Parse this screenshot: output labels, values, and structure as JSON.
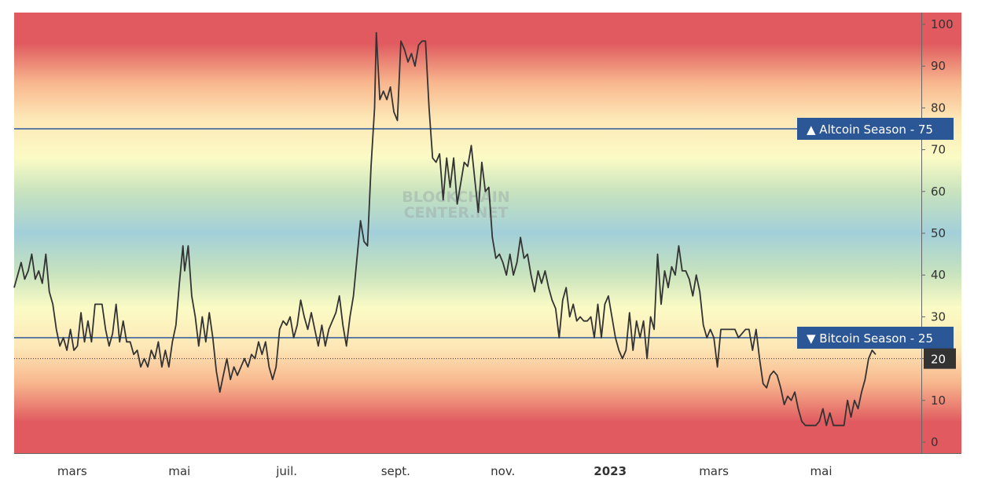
{
  "chart_data": {
    "type": "line",
    "watermark": [
      "BLOCKCHAIN",
      "CENTER.NET"
    ],
    "ylim": [
      0,
      100
    ],
    "y_ticks": [
      0,
      10,
      20,
      30,
      40,
      50,
      60,
      70,
      80,
      90,
      100
    ],
    "x_ticks": [
      {
        "label": "mars",
        "date": "2022-03-01",
        "bold": false
      },
      {
        "label": "mai",
        "date": "2022-05-01",
        "bold": false
      },
      {
        "label": "juil.",
        "date": "2022-07-01",
        "bold": false
      },
      {
        "label": "sept.",
        "date": "2022-09-01",
        "bold": false
      },
      {
        "label": "nov.",
        "date": "2022-11-01",
        "bold": false
      },
      {
        "label": "2023",
        "date": "2023-01-01",
        "bold": true
      },
      {
        "label": "mars",
        "date": "2023-03-01",
        "bold": false
      },
      {
        "label": "mai",
        "date": "2023-05-01",
        "bold": false
      }
    ],
    "xlim": [
      "2022-01-27",
      "2023-06-27"
    ],
    "reference_lines": [
      {
        "label": "Altcoin Season",
        "symbol": "▲",
        "value": 75,
        "color": "#2c5797"
      },
      {
        "label": "Bitcoin Season",
        "symbol": "▼",
        "value": 25,
        "color": "#2c5797"
      }
    ],
    "current_value": 20,
    "series": [
      {
        "color": "#333333",
        "points": [
          [
            "2022-01-27",
            37
          ],
          [
            "2022-01-29",
            40
          ],
          [
            "2022-01-31",
            43
          ],
          [
            "2022-02-02",
            39
          ],
          [
            "2022-02-04",
            41
          ],
          [
            "2022-02-06",
            45
          ],
          [
            "2022-02-08",
            39
          ],
          [
            "2022-02-10",
            41
          ],
          [
            "2022-02-12",
            38
          ],
          [
            "2022-02-14",
            45
          ],
          [
            "2022-02-16",
            36
          ],
          [
            "2022-02-18",
            33
          ],
          [
            "2022-02-20",
            27
          ],
          [
            "2022-02-22",
            23
          ],
          [
            "2022-02-24",
            25
          ],
          [
            "2022-02-26",
            22
          ],
          [
            "2022-02-28",
            27
          ],
          [
            "2022-03-02",
            22
          ],
          [
            "2022-03-04",
            23
          ],
          [
            "2022-03-06",
            31
          ],
          [
            "2022-03-08",
            24
          ],
          [
            "2022-03-10",
            29
          ],
          [
            "2022-03-12",
            24
          ],
          [
            "2022-03-14",
            33
          ],
          [
            "2022-03-16",
            33
          ],
          [
            "2022-03-18",
            33
          ],
          [
            "2022-03-20",
            27
          ],
          [
            "2022-03-22",
            23
          ],
          [
            "2022-03-24",
            26
          ],
          [
            "2022-03-26",
            33
          ],
          [
            "2022-03-28",
            24
          ],
          [
            "2022-03-30",
            29
          ],
          [
            "2022-04-01",
            24
          ],
          [
            "2022-04-03",
            24
          ],
          [
            "2022-04-05",
            21
          ],
          [
            "2022-04-07",
            22
          ],
          [
            "2022-04-09",
            18
          ],
          [
            "2022-04-11",
            20
          ],
          [
            "2022-04-13",
            18
          ],
          [
            "2022-04-15",
            22
          ],
          [
            "2022-04-17",
            20
          ],
          [
            "2022-04-19",
            24
          ],
          [
            "2022-04-21",
            18
          ],
          [
            "2022-04-23",
            22
          ],
          [
            "2022-04-25",
            18
          ],
          [
            "2022-04-27",
            24
          ],
          [
            "2022-04-29",
            28
          ],
          [
            "2022-05-01",
            38
          ],
          [
            "2022-05-03",
            47
          ],
          [
            "2022-05-04",
            41
          ],
          [
            "2022-05-06",
            47
          ],
          [
            "2022-05-08",
            35
          ],
          [
            "2022-05-10",
            30
          ],
          [
            "2022-05-12",
            23
          ],
          [
            "2022-05-14",
            30
          ],
          [
            "2022-05-16",
            24
          ],
          [
            "2022-05-18",
            31
          ],
          [
            "2022-05-20",
            25
          ],
          [
            "2022-05-22",
            17
          ],
          [
            "2022-05-24",
            12
          ],
          [
            "2022-05-26",
            16
          ],
          [
            "2022-05-28",
            20
          ],
          [
            "2022-05-30",
            15
          ],
          [
            "2022-06-01",
            18
          ],
          [
            "2022-06-03",
            16
          ],
          [
            "2022-06-05",
            18
          ],
          [
            "2022-06-07",
            20
          ],
          [
            "2022-06-09",
            18
          ],
          [
            "2022-06-11",
            21
          ],
          [
            "2022-06-13",
            20
          ],
          [
            "2022-06-15",
            24
          ],
          [
            "2022-06-17",
            21
          ],
          [
            "2022-06-19",
            24
          ],
          [
            "2022-06-21",
            18
          ],
          [
            "2022-06-23",
            15
          ],
          [
            "2022-06-25",
            18
          ],
          [
            "2022-06-27",
            27
          ],
          [
            "2022-06-29",
            29
          ],
          [
            "2022-07-01",
            28
          ],
          [
            "2022-07-03",
            30
          ],
          [
            "2022-07-05",
            25
          ],
          [
            "2022-07-07",
            28
          ],
          [
            "2022-07-09",
            34
          ],
          [
            "2022-07-11",
            30
          ],
          [
            "2022-07-13",
            27
          ],
          [
            "2022-07-15",
            31
          ],
          [
            "2022-07-17",
            27
          ],
          [
            "2022-07-19",
            23
          ],
          [
            "2022-07-21",
            28
          ],
          [
            "2022-07-23",
            23
          ],
          [
            "2022-07-25",
            27
          ],
          [
            "2022-07-27",
            29
          ],
          [
            "2022-07-29",
            31
          ],
          [
            "2022-07-31",
            35
          ],
          [
            "2022-08-02",
            28
          ],
          [
            "2022-08-04",
            23
          ],
          [
            "2022-08-06",
            30
          ],
          [
            "2022-08-08",
            35
          ],
          [
            "2022-08-10",
            44
          ],
          [
            "2022-08-12",
            53
          ],
          [
            "2022-08-14",
            48
          ],
          [
            "2022-08-16",
            47
          ],
          [
            "2022-08-18",
            66
          ],
          [
            "2022-08-20",
            80
          ],
          [
            "2022-08-21",
            98
          ],
          [
            "2022-08-23",
            82
          ],
          [
            "2022-08-25",
            84
          ],
          [
            "2022-08-27",
            82
          ],
          [
            "2022-08-29",
            85
          ],
          [
            "2022-08-31",
            79
          ],
          [
            "2022-09-02",
            77
          ],
          [
            "2022-09-04",
            96
          ],
          [
            "2022-09-06",
            94
          ],
          [
            "2022-09-08",
            91
          ],
          [
            "2022-09-10",
            93
          ],
          [
            "2022-09-12",
            90
          ],
          [
            "2022-09-14",
            95
          ],
          [
            "2022-09-16",
            96
          ],
          [
            "2022-09-18",
            96
          ],
          [
            "2022-09-20",
            80
          ],
          [
            "2022-09-22",
            68
          ],
          [
            "2022-09-24",
            67
          ],
          [
            "2022-09-26",
            69
          ],
          [
            "2022-09-28",
            58
          ],
          [
            "2022-09-30",
            68
          ],
          [
            "2022-10-02",
            61
          ],
          [
            "2022-10-04",
            68
          ],
          [
            "2022-10-06",
            57
          ],
          [
            "2022-10-08",
            62
          ],
          [
            "2022-10-10",
            67
          ],
          [
            "2022-10-12",
            66
          ],
          [
            "2022-10-14",
            71
          ],
          [
            "2022-10-16",
            63
          ],
          [
            "2022-10-18",
            55
          ],
          [
            "2022-10-20",
            67
          ],
          [
            "2022-10-22",
            60
          ],
          [
            "2022-10-24",
            61
          ],
          [
            "2022-10-26",
            49
          ],
          [
            "2022-10-28",
            44
          ],
          [
            "2022-10-30",
            45
          ],
          [
            "2022-11-01",
            43
          ],
          [
            "2022-11-03",
            40
          ],
          [
            "2022-11-05",
            45
          ],
          [
            "2022-11-07",
            40
          ],
          [
            "2022-11-09",
            43
          ],
          [
            "2022-11-11",
            49
          ],
          [
            "2022-11-13",
            44
          ],
          [
            "2022-11-15",
            45
          ],
          [
            "2022-11-17",
            40
          ],
          [
            "2022-11-19",
            36
          ],
          [
            "2022-11-21",
            41
          ],
          [
            "2022-11-23",
            38
          ],
          [
            "2022-11-25",
            41
          ],
          [
            "2022-11-27",
            37
          ],
          [
            "2022-11-29",
            34
          ],
          [
            "2022-12-01",
            32
          ],
          [
            "2022-12-03",
            25
          ],
          [
            "2022-12-05",
            34
          ],
          [
            "2022-12-07",
            37
          ],
          [
            "2022-12-09",
            30
          ],
          [
            "2022-12-11",
            33
          ],
          [
            "2022-12-13",
            29
          ],
          [
            "2022-12-15",
            30
          ],
          [
            "2022-12-17",
            29
          ],
          [
            "2022-12-19",
            29
          ],
          [
            "2022-12-21",
            30
          ],
          [
            "2022-12-23",
            25
          ],
          [
            "2022-12-25",
            33
          ],
          [
            "2022-12-27",
            25
          ],
          [
            "2022-12-29",
            33
          ],
          [
            "2022-12-31",
            35
          ],
          [
            "2023-01-02",
            30
          ],
          [
            "2023-01-04",
            25
          ],
          [
            "2023-01-06",
            22
          ],
          [
            "2023-01-08",
            20
          ],
          [
            "2023-01-10",
            22
          ],
          [
            "2023-01-12",
            31
          ],
          [
            "2023-01-14",
            22
          ],
          [
            "2023-01-16",
            29
          ],
          [
            "2023-01-18",
            25
          ],
          [
            "2023-01-20",
            29
          ],
          [
            "2023-01-22",
            20
          ],
          [
            "2023-01-24",
            30
          ],
          [
            "2023-01-26",
            27
          ],
          [
            "2023-01-28",
            45
          ],
          [
            "2023-01-30",
            33
          ],
          [
            "2023-02-01",
            41
          ],
          [
            "2023-02-03",
            37
          ],
          [
            "2023-02-05",
            42
          ],
          [
            "2023-02-07",
            40
          ],
          [
            "2023-02-09",
            47
          ],
          [
            "2023-02-11",
            41
          ],
          [
            "2023-02-13",
            41
          ],
          [
            "2023-02-15",
            39
          ],
          [
            "2023-02-17",
            35
          ],
          [
            "2023-02-19",
            40
          ],
          [
            "2023-02-21",
            36
          ],
          [
            "2023-02-23",
            28
          ],
          [
            "2023-02-25",
            25
          ],
          [
            "2023-02-27",
            27
          ],
          [
            "2023-03-01",
            25
          ],
          [
            "2023-03-03",
            18
          ],
          [
            "2023-03-05",
            27
          ],
          [
            "2023-03-07",
            27
          ],
          [
            "2023-03-09",
            27
          ],
          [
            "2023-03-11",
            27
          ],
          [
            "2023-03-13",
            27
          ],
          [
            "2023-03-15",
            25
          ],
          [
            "2023-03-17",
            26
          ],
          [
            "2023-03-19",
            27
          ],
          [
            "2023-03-21",
            27
          ],
          [
            "2023-03-23",
            22
          ],
          [
            "2023-03-25",
            27
          ],
          [
            "2023-03-27",
            20
          ],
          [
            "2023-03-29",
            14
          ],
          [
            "2023-03-31",
            13
          ],
          [
            "2023-04-02",
            16
          ],
          [
            "2023-04-04",
            17
          ],
          [
            "2023-04-06",
            16
          ],
          [
            "2023-04-08",
            13
          ],
          [
            "2023-04-10",
            9
          ],
          [
            "2023-04-12",
            11
          ],
          [
            "2023-04-14",
            10
          ],
          [
            "2023-04-16",
            12
          ],
          [
            "2023-04-18",
            8
          ],
          [
            "2023-04-20",
            5
          ],
          [
            "2023-04-22",
            4
          ],
          [
            "2023-04-24",
            4
          ],
          [
            "2023-04-26",
            4
          ],
          [
            "2023-04-28",
            4
          ],
          [
            "2023-04-30",
            5
          ],
          [
            "2023-05-02",
            8
          ],
          [
            "2023-05-04",
            4
          ],
          [
            "2023-05-06",
            7
          ],
          [
            "2023-05-08",
            4
          ],
          [
            "2023-05-10",
            4
          ],
          [
            "2023-05-12",
            4
          ],
          [
            "2023-05-14",
            4
          ],
          [
            "2023-05-16",
            10
          ],
          [
            "2023-05-18",
            6
          ],
          [
            "2023-05-20",
            10
          ],
          [
            "2023-05-22",
            8
          ],
          [
            "2023-05-24",
            12
          ],
          [
            "2023-05-26",
            15
          ],
          [
            "2023-05-28",
            20
          ],
          [
            "2023-05-30",
            22
          ],
          [
            "2023-06-01",
            21
          ]
        ]
      }
    ]
  }
}
